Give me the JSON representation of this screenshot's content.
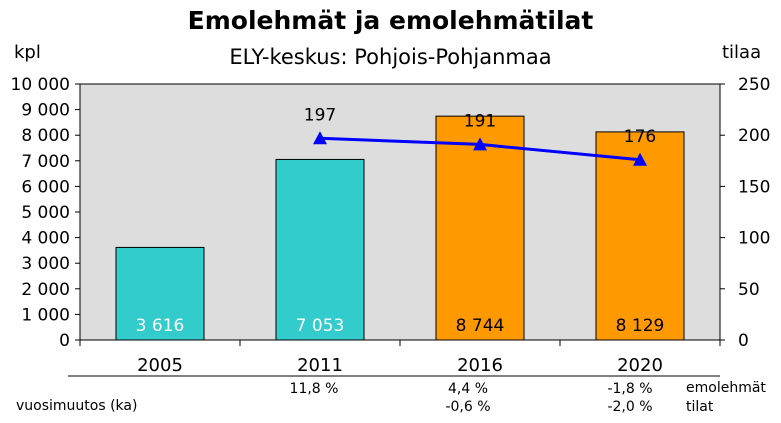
{
  "chart_data": {
    "type": "bar",
    "title": "Emolehmät ja emolehmätilat",
    "subtitle": "ELY-keskus: Pohjois-Pohjanmaa",
    "ylabel_left": "kpl",
    "ylabel_right": "tilaa",
    "categories": [
      "2005",
      "2011",
      "2016",
      "2020"
    ],
    "ylim_left": [
      0,
      10000
    ],
    "ylim_right": [
      0,
      250
    ],
    "left_ticks": [
      "0",
      "1 000",
      "2 000",
      "3 000",
      "4 000",
      "5 000",
      "6 000",
      "7 000",
      "8 000",
      "9 000",
      "10 000"
    ],
    "right_ticks": [
      "0",
      "50",
      "100",
      "150",
      "200",
      "250"
    ],
    "series": [
      {
        "name": "emolehmät",
        "type": "bar",
        "axis": "left",
        "values": [
          3616,
          7053,
          8744,
          8129
        ],
        "labels": [
          "3 616",
          "7 053",
          "8 744",
          "8 129"
        ],
        "colors": [
          "#33CCCC",
          "#33CCCC",
          "#FF9900",
          "#FF9900"
        ]
      },
      {
        "name": "tilat",
        "type": "line",
        "axis": "right",
        "x": [
          "2011",
          "2016",
          "2020"
        ],
        "values": [
          197,
          191,
          176
        ],
        "labels": [
          "197",
          "191",
          "176"
        ],
        "color": "#0000FF"
      }
    ],
    "plot_background": "#DDDDDD",
    "grid": false
  },
  "table": {
    "row_header": "vuosimuutos (ka)",
    "row_labels": [
      "emolehmät",
      "tilat"
    ],
    "cells": [
      {
        "year": "2011",
        "emolehmat": "11,8 %",
        "tilat": ""
      },
      {
        "year": "2016",
        "emolehmat": "4,4 %",
        "tilat": "-0,6 %"
      },
      {
        "year": "2020",
        "emolehmat": "-1,8 %",
        "tilat": "-2,0 %"
      }
    ]
  }
}
